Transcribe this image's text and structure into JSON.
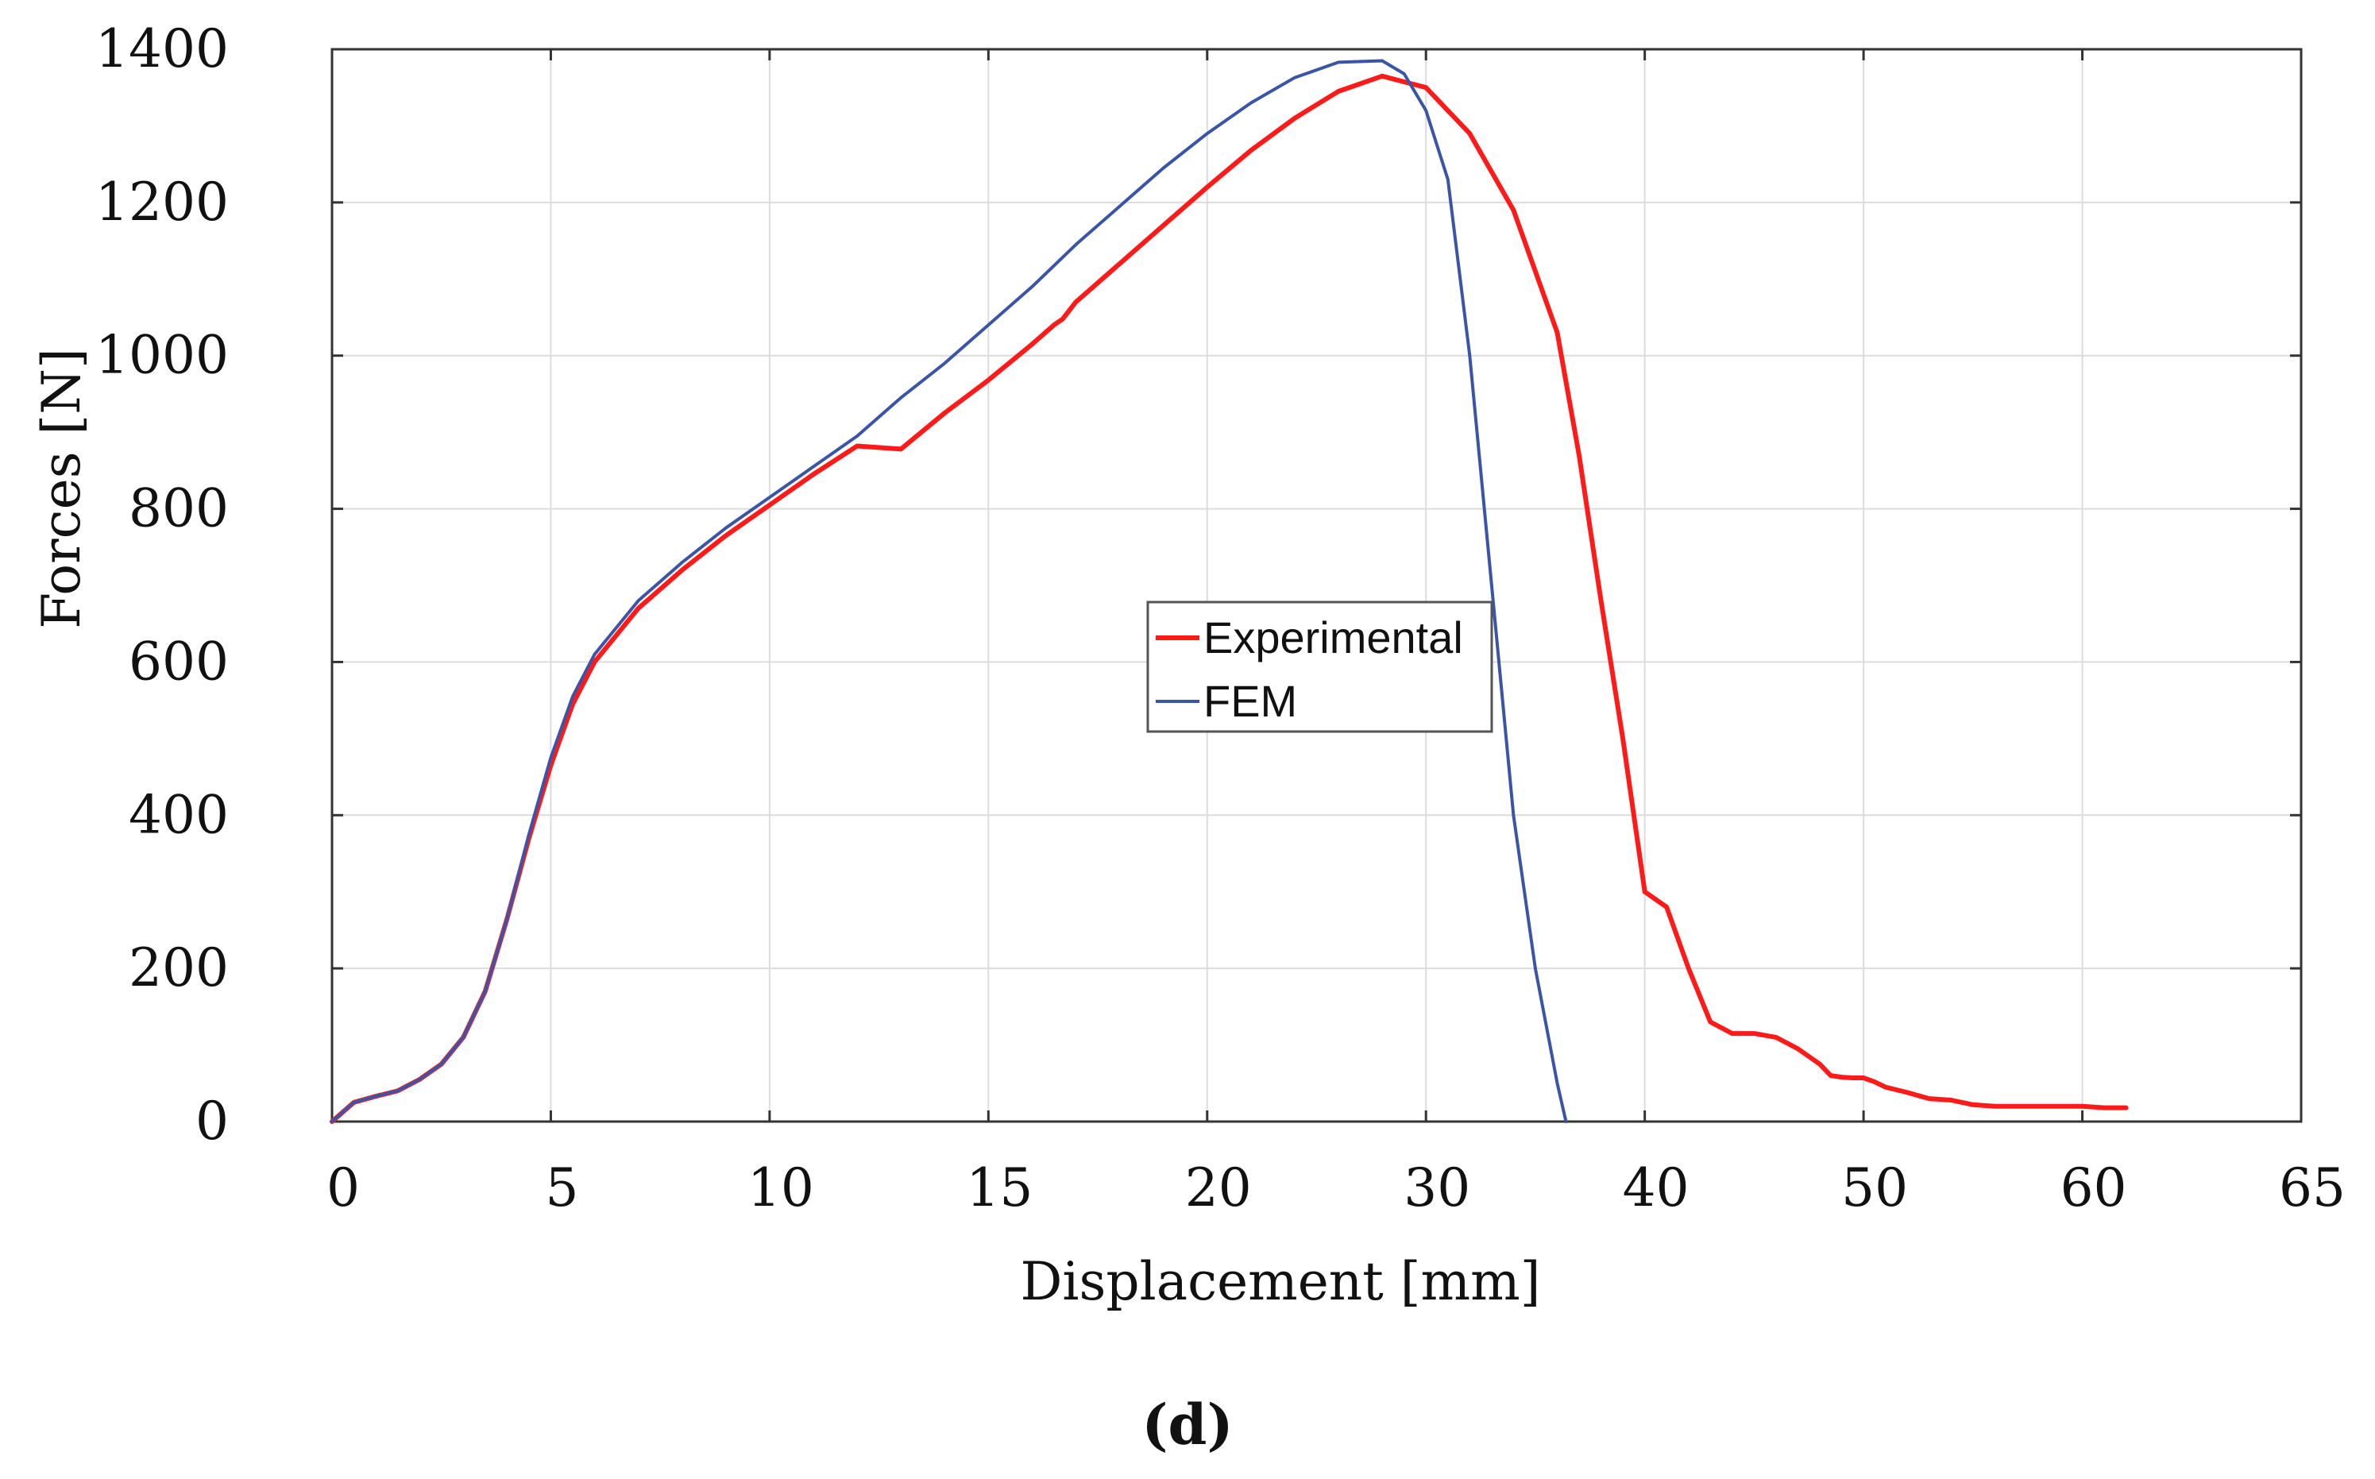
{
  "chart_data": {
    "type": "line",
    "xlabel": "Displacement [mm]",
    "ylabel": "Forces [N]",
    "panel_label": "(d)",
    "xlim": [
      0,
      90
    ],
    "ylim": [
      0,
      1400
    ],
    "x_ticks": [
      {
        "pos": 0,
        "label": "0"
      },
      {
        "pos": 10,
        "label": "5"
      },
      {
        "pos": 20,
        "label": "10"
      },
      {
        "pos": 30,
        "label": "15"
      },
      {
        "pos": 40,
        "label": "20"
      },
      {
        "pos": 50,
        "label": "30"
      },
      {
        "pos": 60,
        "label": "40"
      },
      {
        "pos": 70,
        "label": "50"
      },
      {
        "pos": 80,
        "label": "60"
      },
      {
        "pos": 90,
        "label": "65"
      }
    ],
    "y_ticks": [
      0,
      200,
      400,
      600,
      800,
      1000,
      1200,
      1400
    ],
    "grid": true,
    "legend": "center",
    "series": [
      {
        "name": "Experimental",
        "color": "#ff1a1a",
        "x": [
          0,
          1,
          2,
          3,
          4,
          5,
          6,
          7,
          8,
          9,
          10,
          11,
          12,
          14,
          16,
          18,
          20,
          22,
          24,
          26,
          28,
          30,
          32,
          33,
          33.4,
          34,
          36,
          38,
          40,
          42,
          44,
          46,
          48,
          50,
          52,
          54,
          56,
          57,
          58,
          59,
          60,
          61,
          62,
          63,
          64,
          65,
          66,
          67,
          68,
          68.5,
          69,
          69.5,
          70,
          70.5,
          71,
          72,
          73,
          74,
          75,
          76,
          77,
          78,
          79,
          80,
          81,
          82
        ],
        "values": [
          0,
          25,
          33,
          40,
          55,
          75,
          110,
          170,
          265,
          370,
          465,
          545,
          600,
          670,
          720,
          765,
          805,
          845,
          882,
          878,
          925,
          968,
          1015,
          1040,
          1048,
          1070,
          1120,
          1170,
          1220,
          1268,
          1310,
          1345,
          1365,
          1350,
          1290,
          1190,
          1030,
          870,
          680,
          500,
          300,
          280,
          200,
          130,
          115,
          115,
          110,
          95,
          75,
          60,
          58,
          57,
          57,
          52,
          45,
          38,
          30,
          28,
          22,
          20,
          20,
          20,
          20,
          20,
          18,
          18
        ]
      },
      {
        "name": "FEM",
        "color": "#3a55a8",
        "x": [
          0,
          1,
          2,
          3,
          4,
          5,
          6,
          7,
          8,
          9,
          10,
          11,
          12,
          14,
          16,
          18,
          20,
          22,
          24,
          26,
          28,
          30,
          32,
          34,
          36,
          38,
          40,
          42,
          44,
          46,
          48,
          49,
          50,
          51,
          52,
          53,
          54,
          55,
          56,
          56.4
        ],
        "values": [
          0,
          25,
          33,
          40,
          55,
          75,
          110,
          170,
          265,
          375,
          475,
          555,
          610,
          680,
          730,
          775,
          815,
          855,
          895,
          945,
          990,
          1040,
          1090,
          1145,
          1195,
          1245,
          1290,
          1330,
          1363,
          1383,
          1385,
          1368,
          1320,
          1230,
          1000,
          700,
          400,
          200,
          50,
          0
        ]
      }
    ]
  }
}
